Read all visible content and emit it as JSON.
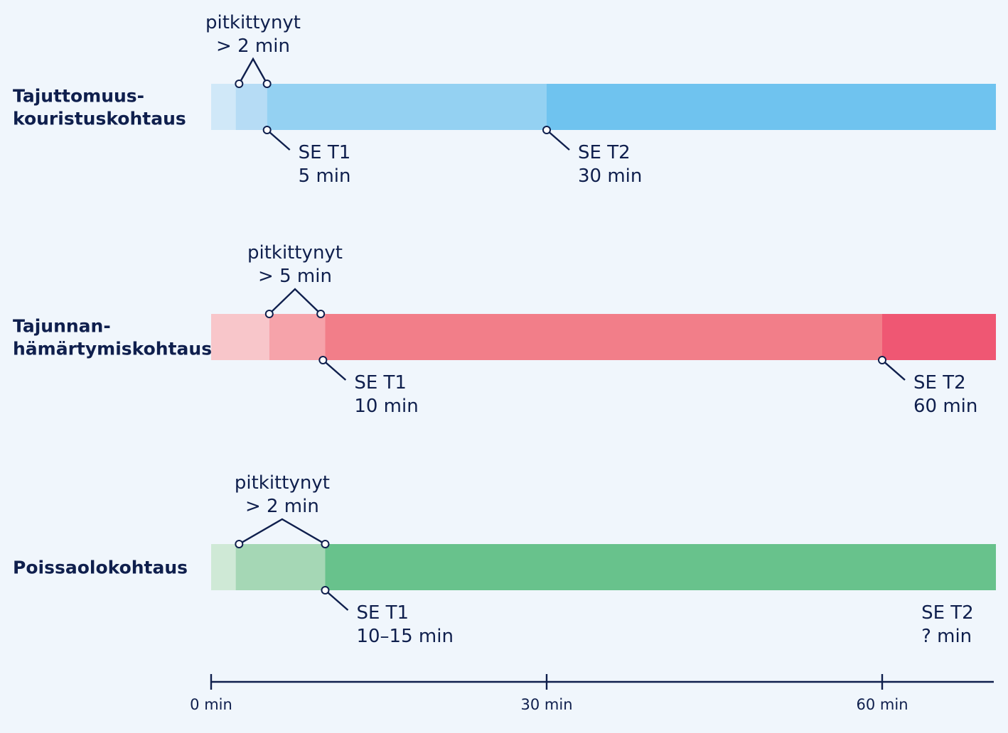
{
  "colors": {
    "text": "#0f1f4d",
    "line": "#0f1f4d",
    "background": "#f0f6fc"
  },
  "rows": [
    {
      "id": "tonic-clonic",
      "label_lines": [
        "Tajuttomuus-",
        "kouristuskohtaus"
      ],
      "stages": [
        {
          "from": 0,
          "to": 2.2,
          "color": "#d0e8f8"
        },
        {
          "from": 2.2,
          "to": 5,
          "color": "#b6dcf5"
        },
        {
          "from": 5,
          "to": 30,
          "color": "#94d1f2"
        },
        {
          "from": 30,
          "to": 70,
          "color": "#6fc3ef"
        }
      ],
      "prolonged": {
        "from": 2.5,
        "to": 5,
        "lines": [
          "pitkittynyt",
          "> 2 min"
        ]
      },
      "markers": [
        {
          "at": 5,
          "lines": [
            "SE T1",
            "5 min"
          ],
          "leader": true
        },
        {
          "at": 30,
          "lines": [
            "SE T2",
            "30 min"
          ],
          "leader": true
        }
      ]
    },
    {
      "id": "focal-impaired",
      "label_lines": [
        "Tajunnan-",
        "hämärtymiskohtaus"
      ],
      "stages": [
        {
          "from": 0,
          "to": 5.2,
          "color": "#f8c6ca"
        },
        {
          "from": 5.2,
          "to": 10.2,
          "color": "#f6a3aa"
        },
        {
          "from": 10.2,
          "to": 60,
          "color": "#f27e89"
        },
        {
          "from": 60,
          "to": 70,
          "color": "#ef5773"
        }
      ],
      "prolonged": {
        "from": 5.2,
        "to": 9.8,
        "lines": [
          "pitkittynyt",
          "> 5 min"
        ]
      },
      "markers": [
        {
          "at": 10,
          "lines": [
            "SE T1",
            "10 min"
          ],
          "leader": true
        },
        {
          "at": 60,
          "lines": [
            "SE T2",
            "60 min"
          ],
          "leader": true
        }
      ]
    },
    {
      "id": "absence",
      "label_lines": [
        "Poissaolokohtaus"
      ],
      "stages": [
        {
          "from": 0,
          "to": 2.2,
          "color": "#cfe9d6"
        },
        {
          "from": 2.2,
          "to": 10.2,
          "color": "#a5d7b5"
        },
        {
          "from": 10.2,
          "to": 70,
          "color": "#68c28c"
        }
      ],
      "prolonged": {
        "from": 2.5,
        "to": 10.2,
        "lines": [
          "pitkittynyt",
          "> 2 min"
        ]
      },
      "markers": [
        {
          "at": 10.2,
          "lines": [
            "SE T1",
            "10–15 min"
          ],
          "leader": true
        },
        {
          "at": 63.5,
          "lines": [
            "SE T2",
            "? min"
          ],
          "leader": false
        }
      ]
    }
  ],
  "axis": {
    "min": 0,
    "max": 70,
    "ticks": [
      {
        "value": 0,
        "label": "0 min"
      },
      {
        "value": 30,
        "label": "30 min"
      },
      {
        "value": 60,
        "label": "60 min"
      }
    ]
  }
}
